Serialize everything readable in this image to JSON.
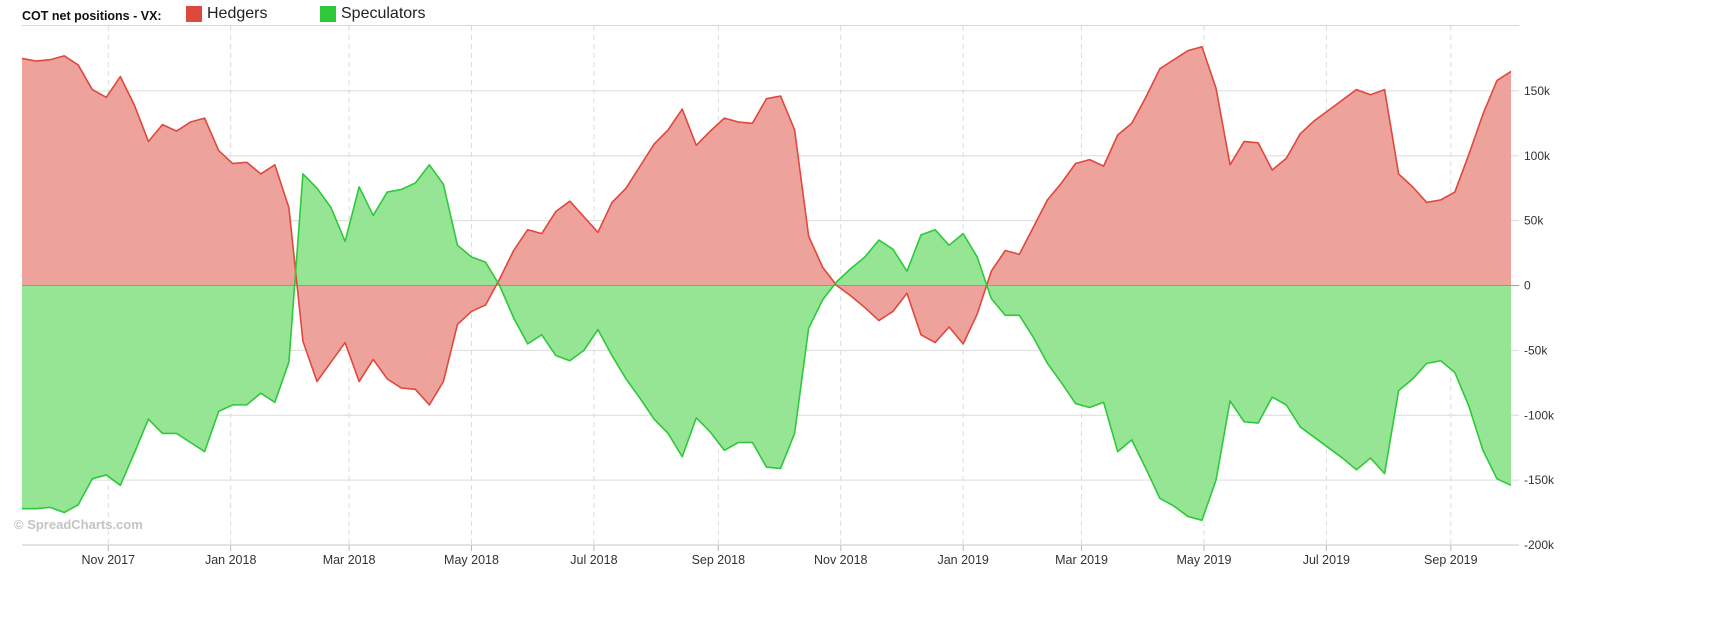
{
  "legend": {
    "title": "COT net positions - VX:",
    "items": [
      {
        "label": "Hedgers",
        "color": "#e0473d"
      },
      {
        "label": "Speculators",
        "color": "#2ec93a"
      }
    ]
  },
  "watermark": "© SpreadCharts.com",
  "colors": {
    "hedgers_fill": "#eda39b",
    "hedgers_line": "#e0473d",
    "speculators_fill": "#96e594",
    "speculators_line": "#2ec93a",
    "grid": "#dcdcdc"
  },
  "chart_data": {
    "type": "area",
    "title": "COT net positions - VX:",
    "ylim": [
      -200000,
      200000
    ],
    "ytick_values": [
      150000,
      100000,
      50000,
      0,
      -50000,
      -100000,
      -150000,
      -200000
    ],
    "ytick_labels": [
      "150k",
      "100k",
      "50k",
      "0",
      "-50k",
      "-100k",
      "-150k",
      "-200k"
    ],
    "xticks": [
      {
        "label": "Nov 2017",
        "date": "2017-11-01"
      },
      {
        "label": "Jan 2018",
        "date": "2018-01-01"
      },
      {
        "label": "Mar 2018",
        "date": "2018-03-01"
      },
      {
        "label": "May 2018",
        "date": "2018-05-01"
      },
      {
        "label": "Jul 2018",
        "date": "2018-07-01"
      },
      {
        "label": "Sep 2018",
        "date": "2018-09-01"
      },
      {
        "label": "Nov 2018",
        "date": "2018-11-01"
      },
      {
        "label": "Jan 2019",
        "date": "2019-01-01"
      },
      {
        "label": "Mar 2019",
        "date": "2019-03-01"
      },
      {
        "label": "May 2019",
        "date": "2019-05-01"
      },
      {
        "label": "Jul 2019",
        "date": "2019-07-01"
      },
      {
        "label": "Sep 2019",
        "date": "2019-09-01"
      }
    ],
    "grid": true,
    "legend_position": "top-left",
    "x": [
      "2017-09-19",
      "2017-09-26",
      "2017-10-03",
      "2017-10-10",
      "2017-10-17",
      "2017-10-24",
      "2017-10-31",
      "2017-11-07",
      "2017-11-14",
      "2017-11-21",
      "2017-11-28",
      "2017-12-05",
      "2017-12-12",
      "2017-12-19",
      "2017-12-26",
      "2018-01-02",
      "2018-01-09",
      "2018-01-16",
      "2018-01-23",
      "2018-01-30",
      "2018-02-06",
      "2018-02-13",
      "2018-02-20",
      "2018-02-27",
      "2018-03-06",
      "2018-03-13",
      "2018-03-20",
      "2018-03-27",
      "2018-04-03",
      "2018-04-10",
      "2018-04-17",
      "2018-04-24",
      "2018-05-01",
      "2018-05-08",
      "2018-05-15",
      "2018-05-22",
      "2018-05-29",
      "2018-06-05",
      "2018-06-12",
      "2018-06-19",
      "2018-06-26",
      "2018-07-03",
      "2018-07-10",
      "2018-07-17",
      "2018-07-24",
      "2018-07-31",
      "2018-08-07",
      "2018-08-14",
      "2018-08-21",
      "2018-08-28",
      "2018-09-04",
      "2018-09-11",
      "2018-09-18",
      "2018-09-25",
      "2018-10-02",
      "2018-10-09",
      "2018-10-16",
      "2018-10-23",
      "2018-10-30",
      "2018-11-06",
      "2018-11-13",
      "2018-11-20",
      "2018-11-27",
      "2018-12-04",
      "2018-12-11",
      "2018-12-18",
      "2018-12-25",
      "2019-01-01",
      "2019-01-08",
      "2019-01-15",
      "2019-01-22",
      "2019-01-29",
      "2019-02-05",
      "2019-02-12",
      "2019-02-19",
      "2019-02-26",
      "2019-03-05",
      "2019-03-12",
      "2019-03-19",
      "2019-03-26",
      "2019-04-02",
      "2019-04-09",
      "2019-04-16",
      "2019-04-23",
      "2019-04-30",
      "2019-05-07",
      "2019-05-14",
      "2019-05-21",
      "2019-05-28",
      "2019-06-04",
      "2019-06-11",
      "2019-06-18",
      "2019-06-25",
      "2019-07-02",
      "2019-07-09",
      "2019-07-16",
      "2019-07-23",
      "2019-07-30",
      "2019-08-06",
      "2019-08-13",
      "2019-08-20",
      "2019-08-27",
      "2019-09-03",
      "2019-09-10",
      "2019-09-17",
      "2019-09-24",
      "2019-10-01"
    ],
    "series": [
      {
        "name": "Hedgers",
        "values": [
          175000,
          173000,
          174000,
          177000,
          170000,
          151000,
          145000,
          161000,
          139000,
          111000,
          124000,
          119000,
          126000,
          129000,
          104000,
          94000,
          95000,
          86000,
          93000,
          60000,
          -43000,
          -74000,
          -59000,
          -44000,
          -74000,
          -57000,
          -72000,
          -79000,
          -80000,
          -92000,
          -74000,
          -30000,
          -20000,
          -15000,
          5000,
          27000,
          43000,
          40000,
          57000,
          65000,
          53000,
          41000,
          64000,
          75000,
          92000,
          109000,
          120000,
          136000,
          108000,
          119000,
          129000,
          126000,
          125000,
          144000,
          146000,
          120000,
          38000,
          14000,
          0,
          -8000,
          -17000,
          -27000,
          -20000,
          -6000,
          -38000,
          -44000,
          -32000,
          -45000,
          -22000,
          11000,
          27000,
          24000,
          45000,
          66000,
          79000,
          94000,
          97000,
          92000,
          116000,
          125000,
          145000,
          167000,
          174000,
          181000,
          184000,
          152000,
          93000,
          111000,
          110000,
          89000,
          98000,
          117000,
          127000,
          135000,
          143000,
          151000,
          147000,
          151000,
          86000,
          76000,
          64000,
          66000,
          72000,
          101000,
          132000,
          158000,
          165000
        ]
      },
      {
        "name": "Speculators",
        "values": [
          -172000,
          -172000,
          -171000,
          -175000,
          -169000,
          -149000,
          -146000,
          -154000,
          -129000,
          -103000,
          -114000,
          -114000,
          -121000,
          -128000,
          -97000,
          -92000,
          -92000,
          -83000,
          -90000,
          -59000,
          86000,
          75000,
          60000,
          34000,
          76000,
          54000,
          72000,
          74000,
          79000,
          93000,
          78000,
          31000,
          22000,
          18000,
          0,
          -25000,
          -45000,
          -38000,
          -54000,
          -58000,
          -50000,
          -34000,
          -54000,
          -72000,
          -87000,
          -103000,
          -114000,
          -132000,
          -102000,
          -113000,
          -127000,
          -121000,
          -121000,
          -140000,
          -141000,
          -114000,
          -33000,
          -11000,
          3000,
          13000,
          22000,
          35000,
          28000,
          11000,
          39000,
          43000,
          31000,
          40000,
          22000,
          -10000,
          -23000,
          -23000,
          -40000,
          -60000,
          -75000,
          -91000,
          -94000,
          -90000,
          -128000,
          -119000,
          -141000,
          -164000,
          -170000,
          -178000,
          -181000,
          -150000,
          -89000,
          -105000,
          -106000,
          -86000,
          -92000,
          -109000,
          -117000,
          -125000,
          -133000,
          -142000,
          -133000,
          -145000,
          -81000,
          -72000,
          -60000,
          -58000,
          -67000,
          -93000,
          -127000,
          -149000,
          -154000
        ]
      }
    ]
  }
}
